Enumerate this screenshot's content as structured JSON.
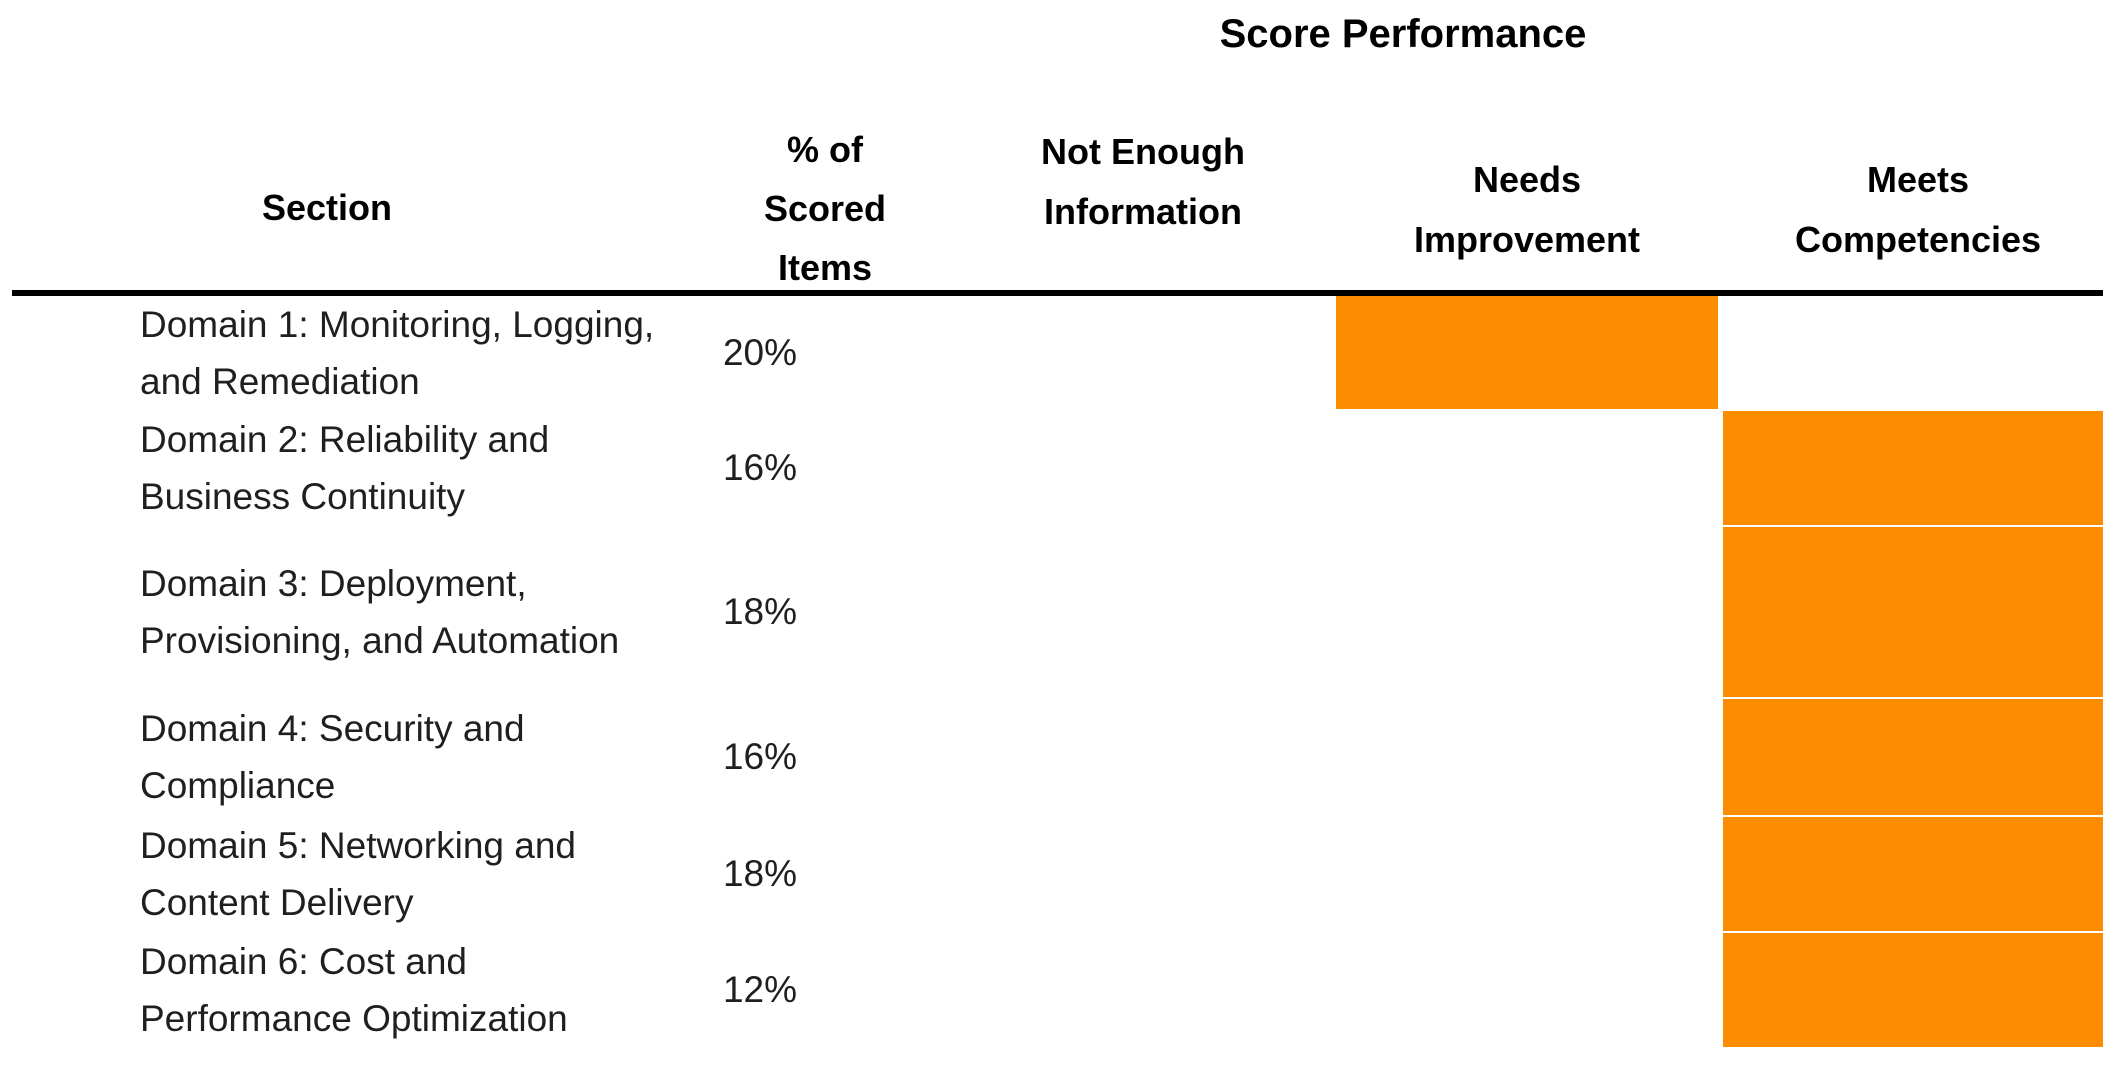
{
  "title": "Score Performance",
  "columns": {
    "section": "Section",
    "pct": "% of Scored Items",
    "not_enough_information": "Not Enough Information",
    "needs_improvement": "Needs Improvement",
    "meets_competencies": "Meets Competencies"
  },
  "colors": {
    "highlight_orange": "#FB8C00",
    "rule_black": "#000000",
    "text_black": "#1F1F1F"
  },
  "chart_data": {
    "type": "table",
    "title": "Score Performance",
    "columns": [
      "Section",
      "% of Scored Items",
      "Not Enough Information",
      "Needs Improvement",
      "Meets Competencies"
    ],
    "rating_scale": [
      "Not Enough Information",
      "Needs Improvement",
      "Meets Competencies"
    ],
    "highlight_color": "#FB8C00",
    "rows": [
      {
        "section": "Domain 1: Monitoring, Logging, and Remediation",
        "pct": "20%",
        "rating": "Needs Improvement"
      },
      {
        "section": "Domain 2: Reliability and Business Continuity",
        "pct": "16%",
        "rating": "Meets Competencies"
      },
      {
        "section": "Domain 3: Deployment, Provisioning, and Automation",
        "pct": "18%",
        "rating": "Meets Competencies"
      },
      {
        "section": "Domain 4: Security and Compliance",
        "pct": "16%",
        "rating": "Meets Competencies"
      },
      {
        "section": "Domain 5: Networking and Content Delivery",
        "pct": "18%",
        "rating": "Meets Competencies"
      },
      {
        "section": "Domain 6: Cost and Performance Optimization",
        "pct": "12%",
        "rating": "Meets Competencies"
      }
    ]
  }
}
